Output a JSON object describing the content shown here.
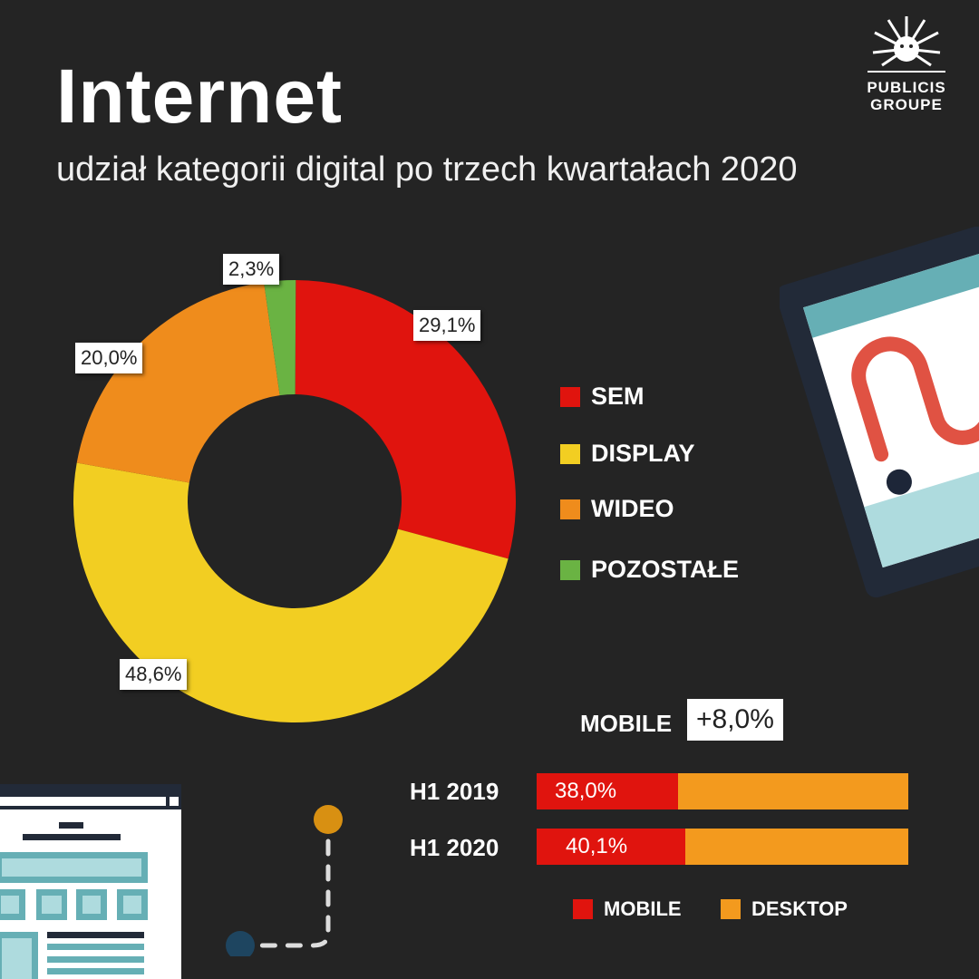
{
  "title": "Internet",
  "subtitle": "udział kategorii digital po trzech kwartałach 2020",
  "logo": {
    "line1": "PUBLICIS",
    "line2": "GROUPE"
  },
  "chart_data": [
    {
      "type": "pie",
      "subtype": "donut",
      "categories": [
        "SEM",
        "DISPLAY",
        "WIDEO",
        "POZOSTAŁE"
      ],
      "values": [
        29.1,
        48.6,
        20.0,
        2.3
      ],
      "labels": [
        "29,1%",
        "48,6%",
        "20,0%",
        "2,3%"
      ],
      "colors": [
        "#e0140e",
        "#f2ce22",
        "#ef8c1c",
        "#6ab343"
      ],
      "legend": "right"
    },
    {
      "type": "bar",
      "subtype": "stacked-horizontal",
      "categories": [
        "H1 2019",
        "H1 2020"
      ],
      "series": [
        {
          "name": "MOBILE",
          "values": [
            38.0,
            40.1
          ],
          "labels": [
            "38,0%",
            "40,1%"
          ],
          "color": "#e0140e"
        },
        {
          "name": "DESKTOP",
          "values": [
            62.0,
            59.9
          ],
          "color": "#f39a1e"
        }
      ],
      "annotation": {
        "label": "MOBILE",
        "value": "+8,0%"
      },
      "legend": "bottom"
    }
  ]
}
